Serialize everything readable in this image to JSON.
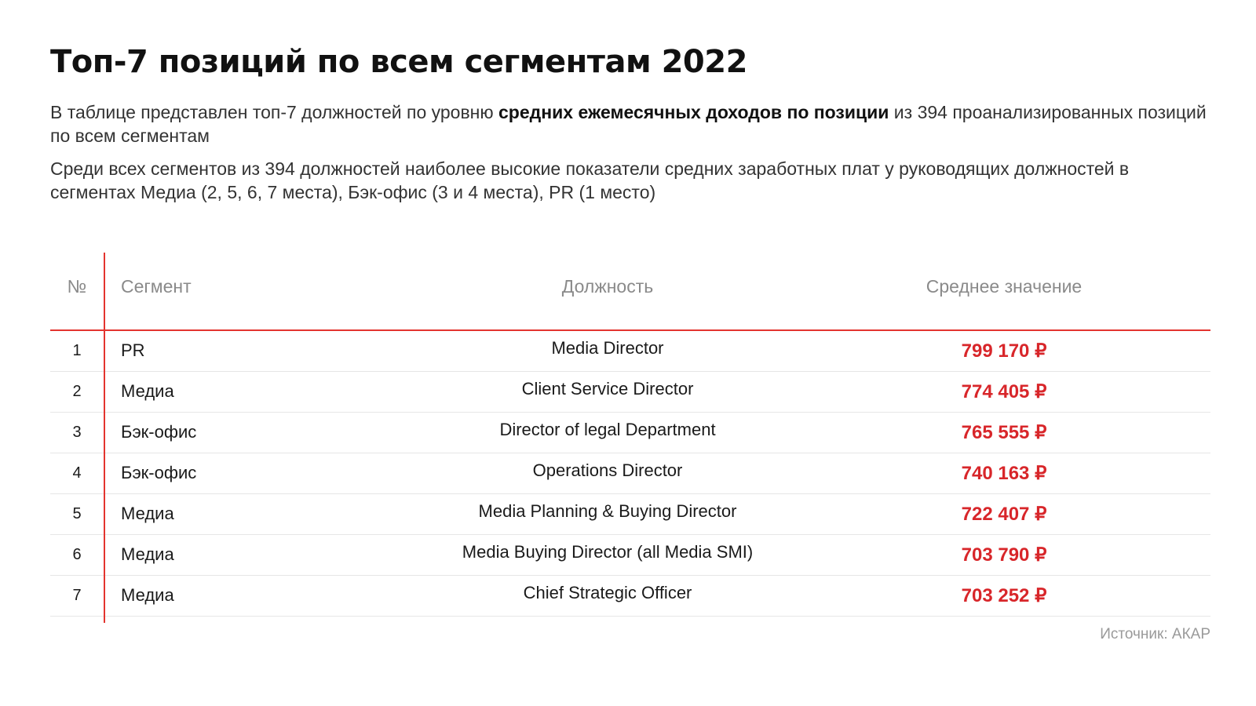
{
  "title": "Топ-7 позиций по всем сегментам 2022",
  "intro": {
    "part1": "В таблице представлен топ-7 должностей по уровню ",
    "bold": "средних ежемесячных доходов по позиции",
    "part2": " из 394 проанализированных позиций по всем сегментам"
  },
  "summary": "Среди всех сегментов из 394 должностей наиболее высокие показатели средних заработных плат у руководящих должностей в сегментах Медиа (2, 5, 6, 7 места), Бэк-офис (3 и 4 места), PR (1 место)",
  "table": {
    "headers": {
      "num": "№",
      "segment": "Сегмент",
      "position": "Должность",
      "average": "Среднее значение"
    },
    "rows": [
      {
        "num": "1",
        "segment": "PR",
        "position": "Media Director",
        "average": "799 170 ₽"
      },
      {
        "num": "2",
        "segment": "Медиа",
        "position": "Client Service Director",
        "average": "774 405 ₽"
      },
      {
        "num": "3",
        "segment": "Бэк-офис",
        "position": "Director of legal Department",
        "average": "765 555 ₽"
      },
      {
        "num": "4",
        "segment": "Бэк-офис",
        "position": "Operations Director",
        "average": "740 163 ₽"
      },
      {
        "num": "5",
        "segment": "Медиа",
        "position": "Media Planning & Buying Director",
        "average": "722 407 ₽"
      },
      {
        "num": "6",
        "segment": "Медиа",
        "position": "Media Buying Director (all Media SMI)",
        "average": "703 790 ₽"
      },
      {
        "num": "7",
        "segment": "Медиа",
        "position": "Chief Strategic Officer",
        "average": "703 252 ₽"
      }
    ]
  },
  "source": "Источник: АКАР",
  "colors": {
    "accent": "#e3342f",
    "value": "#d8262a"
  }
}
